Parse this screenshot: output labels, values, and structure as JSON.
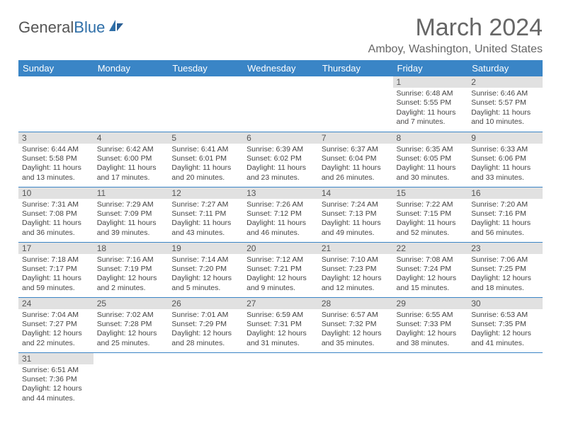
{
  "logo": {
    "text1": "General",
    "text2": "Blue"
  },
  "title": "March 2024",
  "location": "Amboy, Washington, United States",
  "colors": {
    "header_bg": "#3a85c6",
    "header_fg": "#ffffff",
    "daynum_bg": "#e1e1e1",
    "border": "#3a85c6",
    "text": "#444444"
  },
  "weekdays": [
    "Sunday",
    "Monday",
    "Tuesday",
    "Wednesday",
    "Thursday",
    "Friday",
    "Saturday"
  ],
  "weeks": [
    [
      null,
      null,
      null,
      null,
      null,
      {
        "n": "1",
        "sr": "Sunrise: 6:48 AM",
        "ss": "Sunset: 5:55 PM",
        "dl": "Daylight: 11 hours and 7 minutes."
      },
      {
        "n": "2",
        "sr": "Sunrise: 6:46 AM",
        "ss": "Sunset: 5:57 PM",
        "dl": "Daylight: 11 hours and 10 minutes."
      }
    ],
    [
      {
        "n": "3",
        "sr": "Sunrise: 6:44 AM",
        "ss": "Sunset: 5:58 PM",
        "dl": "Daylight: 11 hours and 13 minutes."
      },
      {
        "n": "4",
        "sr": "Sunrise: 6:42 AM",
        "ss": "Sunset: 6:00 PM",
        "dl": "Daylight: 11 hours and 17 minutes."
      },
      {
        "n": "5",
        "sr": "Sunrise: 6:41 AM",
        "ss": "Sunset: 6:01 PM",
        "dl": "Daylight: 11 hours and 20 minutes."
      },
      {
        "n": "6",
        "sr": "Sunrise: 6:39 AM",
        "ss": "Sunset: 6:02 PM",
        "dl": "Daylight: 11 hours and 23 minutes."
      },
      {
        "n": "7",
        "sr": "Sunrise: 6:37 AM",
        "ss": "Sunset: 6:04 PM",
        "dl": "Daylight: 11 hours and 26 minutes."
      },
      {
        "n": "8",
        "sr": "Sunrise: 6:35 AM",
        "ss": "Sunset: 6:05 PM",
        "dl": "Daylight: 11 hours and 30 minutes."
      },
      {
        "n": "9",
        "sr": "Sunrise: 6:33 AM",
        "ss": "Sunset: 6:06 PM",
        "dl": "Daylight: 11 hours and 33 minutes."
      }
    ],
    [
      {
        "n": "10",
        "sr": "Sunrise: 7:31 AM",
        "ss": "Sunset: 7:08 PM",
        "dl": "Daylight: 11 hours and 36 minutes."
      },
      {
        "n": "11",
        "sr": "Sunrise: 7:29 AM",
        "ss": "Sunset: 7:09 PM",
        "dl": "Daylight: 11 hours and 39 minutes."
      },
      {
        "n": "12",
        "sr": "Sunrise: 7:27 AM",
        "ss": "Sunset: 7:11 PM",
        "dl": "Daylight: 11 hours and 43 minutes."
      },
      {
        "n": "13",
        "sr": "Sunrise: 7:26 AM",
        "ss": "Sunset: 7:12 PM",
        "dl": "Daylight: 11 hours and 46 minutes."
      },
      {
        "n": "14",
        "sr": "Sunrise: 7:24 AM",
        "ss": "Sunset: 7:13 PM",
        "dl": "Daylight: 11 hours and 49 minutes."
      },
      {
        "n": "15",
        "sr": "Sunrise: 7:22 AM",
        "ss": "Sunset: 7:15 PM",
        "dl": "Daylight: 11 hours and 52 minutes."
      },
      {
        "n": "16",
        "sr": "Sunrise: 7:20 AM",
        "ss": "Sunset: 7:16 PM",
        "dl": "Daylight: 11 hours and 56 minutes."
      }
    ],
    [
      {
        "n": "17",
        "sr": "Sunrise: 7:18 AM",
        "ss": "Sunset: 7:17 PM",
        "dl": "Daylight: 11 hours and 59 minutes."
      },
      {
        "n": "18",
        "sr": "Sunrise: 7:16 AM",
        "ss": "Sunset: 7:19 PM",
        "dl": "Daylight: 12 hours and 2 minutes."
      },
      {
        "n": "19",
        "sr": "Sunrise: 7:14 AM",
        "ss": "Sunset: 7:20 PM",
        "dl": "Daylight: 12 hours and 5 minutes."
      },
      {
        "n": "20",
        "sr": "Sunrise: 7:12 AM",
        "ss": "Sunset: 7:21 PM",
        "dl": "Daylight: 12 hours and 9 minutes."
      },
      {
        "n": "21",
        "sr": "Sunrise: 7:10 AM",
        "ss": "Sunset: 7:23 PM",
        "dl": "Daylight: 12 hours and 12 minutes."
      },
      {
        "n": "22",
        "sr": "Sunrise: 7:08 AM",
        "ss": "Sunset: 7:24 PM",
        "dl": "Daylight: 12 hours and 15 minutes."
      },
      {
        "n": "23",
        "sr": "Sunrise: 7:06 AM",
        "ss": "Sunset: 7:25 PM",
        "dl": "Daylight: 12 hours and 18 minutes."
      }
    ],
    [
      {
        "n": "24",
        "sr": "Sunrise: 7:04 AM",
        "ss": "Sunset: 7:27 PM",
        "dl": "Daylight: 12 hours and 22 minutes."
      },
      {
        "n": "25",
        "sr": "Sunrise: 7:02 AM",
        "ss": "Sunset: 7:28 PM",
        "dl": "Daylight: 12 hours and 25 minutes."
      },
      {
        "n": "26",
        "sr": "Sunrise: 7:01 AM",
        "ss": "Sunset: 7:29 PM",
        "dl": "Daylight: 12 hours and 28 minutes."
      },
      {
        "n": "27",
        "sr": "Sunrise: 6:59 AM",
        "ss": "Sunset: 7:31 PM",
        "dl": "Daylight: 12 hours and 31 minutes."
      },
      {
        "n": "28",
        "sr": "Sunrise: 6:57 AM",
        "ss": "Sunset: 7:32 PM",
        "dl": "Daylight: 12 hours and 35 minutes."
      },
      {
        "n": "29",
        "sr": "Sunrise: 6:55 AM",
        "ss": "Sunset: 7:33 PM",
        "dl": "Daylight: 12 hours and 38 minutes."
      },
      {
        "n": "30",
        "sr": "Sunrise: 6:53 AM",
        "ss": "Sunset: 7:35 PM",
        "dl": "Daylight: 12 hours and 41 minutes."
      }
    ],
    [
      {
        "n": "31",
        "sr": "Sunrise: 6:51 AM",
        "ss": "Sunset: 7:36 PM",
        "dl": "Daylight: 12 hours and 44 minutes."
      },
      null,
      null,
      null,
      null,
      null,
      null
    ]
  ]
}
